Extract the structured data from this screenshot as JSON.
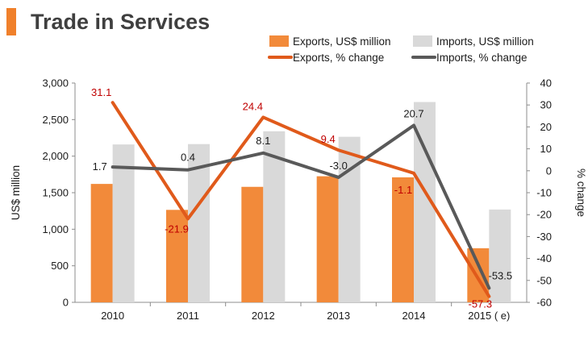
{
  "title": "Trade in Services",
  "colors": {
    "accent": "#f0802b",
    "exports_bar": "#f28a3a",
    "imports_bar": "#d9d9d9",
    "exports_line": "#e05a1b",
    "imports_line": "#595959",
    "exports_label": "#c00000",
    "imports_label": "#1a1a1a",
    "title": "#3f3f3f"
  },
  "chart_data": {
    "type": "bar",
    "title": "Trade in Services",
    "categories": [
      "2010",
      "2011",
      "2012",
      "2013",
      "2014",
      "2015 ( e)"
    ],
    "ylabel": "US$ million",
    "y2label": "% change",
    "ylim": [
      0,
      3000
    ],
    "y2lim": [
      -60,
      40
    ],
    "yticks": [
      "3,000",
      "2,500",
      "2,000",
      "1,500",
      "1,000",
      "500",
      "0"
    ],
    "y2ticks": [
      "40",
      "30",
      "20",
      "10",
      "0",
      "-10",
      "-20",
      "-30",
      "-40",
      "-50",
      "-60"
    ],
    "legend_position": "top-right",
    "series": [
      {
        "name": "Exports, US$ million",
        "type": "bar",
        "axis": "left",
        "values": [
          1620,
          1265,
          1580,
          1725,
          1710,
          740
        ]
      },
      {
        "name": "Imports, US$ million",
        "type": "bar",
        "axis": "left",
        "values": [
          2160,
          2165,
          2340,
          2265,
          2740,
          1270
        ]
      },
      {
        "name": "Exports, % change",
        "type": "line",
        "axis": "right",
        "values": [
          31.1,
          -21.9,
          24.4,
          9.4,
          -1.1,
          -57.3
        ],
        "labels": [
          "31.1",
          "-21.9",
          "24.4",
          "9.4",
          "-1.1",
          "-57.3"
        ]
      },
      {
        "name": "Imports, % change",
        "type": "line",
        "axis": "right",
        "values": [
          1.7,
          0.4,
          8.1,
          -3.0,
          20.7,
          -53.5
        ],
        "labels": [
          "1.7",
          "0.4",
          "8.1",
          "-3.0",
          "20.7",
          "-53.5"
        ]
      }
    ]
  }
}
